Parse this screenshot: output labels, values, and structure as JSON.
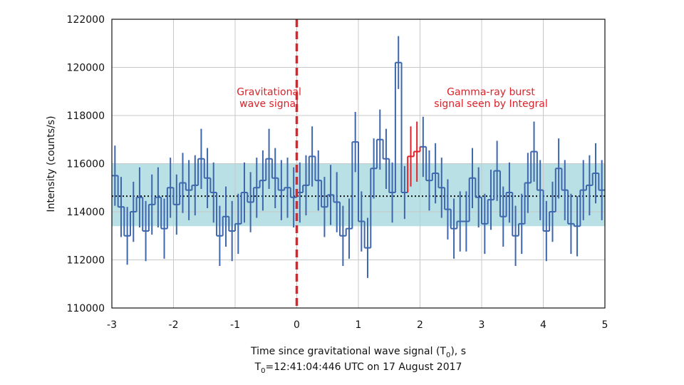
{
  "chart_data": {
    "type": "line",
    "title": "",
    "xlabel": "Time since gravitational wave signal (T",
    "xlabel_sub": "0",
    "xlabel_suffix": "), s",
    "xlabel_line2_prefix": "T",
    "xlabel_line2_sub": "0",
    "xlabel_line2_suffix": "=12:41:04:446 UTC on 17 August 2017",
    "ylabel": "Intensity (counts/s)",
    "xlim": [
      -3,
      5
    ],
    "ylim": [
      110000,
      122000
    ],
    "xticks": [
      -3,
      -2,
      -1,
      0,
      1,
      2,
      3,
      4,
      5
    ],
    "xtick_labels": [
      "-3",
      "-2",
      "-1",
      "0",
      "1",
      "2",
      "3",
      "4",
      "5"
    ],
    "yticks": [
      110000,
      112000,
      114000,
      116000,
      118000,
      120000,
      122000
    ],
    "ytick_labels": [
      "110000",
      "112000",
      "114000",
      "116000",
      "118000",
      "120000",
      "122000"
    ],
    "grid": true,
    "bin_width": 0.1,
    "series": [
      {
        "x_start": [
          -3.0,
          -2.9,
          -2.8,
          -2.7,
          -2.6,
          -2.5,
          -2.4,
          -2.3,
          -2.2,
          -2.1,
          -2.0,
          -1.9,
          -1.8,
          -1.7,
          -1.6,
          -1.5,
          -1.4,
          -1.3,
          -1.2,
          -1.1,
          -1.0,
          -0.9,
          -0.8,
          -0.7,
          -0.6,
          -0.5,
          -0.4,
          -0.3,
          -0.2,
          -0.1,
          0.0,
          0.1,
          0.2,
          0.3,
          0.4,
          0.5,
          0.6,
          0.7,
          0.8,
          0.9,
          1.0,
          1.1,
          1.2,
          1.3,
          1.4,
          1.5,
          1.6,
          1.7,
          1.8,
          1.9,
          2.0,
          2.1,
          2.2,
          2.3,
          2.4,
          2.5,
          2.6,
          2.7,
          2.8,
          2.9,
          3.0,
          3.1,
          3.2,
          3.3,
          3.4,
          3.5,
          3.6,
          3.7,
          3.8,
          3.9,
          4.0,
          4.1,
          4.2,
          4.3,
          4.4,
          4.5,
          4.6,
          4.7,
          4.8,
          4.9
        ],
        "values": [
          115500,
          114200,
          113000,
          114000,
          114600,
          113200,
          114300,
          114600,
          113300,
          115000,
          114300,
          115200,
          114900,
          115100,
          116200,
          115400,
          114800,
          113000,
          113800,
          113200,
          113500,
          114800,
          114400,
          115000,
          115300,
          116200,
          115400,
          114900,
          115000,
          114600,
          114800,
          115100,
          116300,
          115300,
          114200,
          114700,
          114400,
          113000,
          113300,
          116900,
          113600,
          112500,
          115800,
          117000,
          116200,
          114800,
          120200,
          114800,
          116300,
          116500,
          116700,
          115300,
          115600,
          115000,
          114100,
          113300,
          113600,
          113600,
          115400,
          114600,
          113500,
          114500,
          115700,
          113800,
          114800,
          113000,
          113500,
          115200,
          116500,
          114900,
          113200,
          114000,
          115800,
          114900,
          113500,
          113400,
          114900,
          115100,
          115600,
          114900
        ],
        "error": [
          1250,
          1250,
          1200,
          1250,
          1250,
          1250,
          1250,
          1250,
          1250,
          1250,
          1250,
          1250,
          1250,
          1250,
          1250,
          1250,
          1250,
          1250,
          1250,
          1250,
          1250,
          1250,
          1250,
          1250,
          1250,
          1250,
          1250,
          1250,
          1250,
          1250,
          1250,
          1250,
          1250,
          1250,
          1250,
          1250,
          1250,
          1250,
          1250,
          1250,
          1250,
          1250,
          1250,
          1250,
          1250,
          1250,
          1100,
          1100,
          1250,
          1250,
          1250,
          1250,
          1250,
          1250,
          1250,
          1250,
          1250,
          1250,
          1250,
          1250,
          1250,
          1250,
          1250,
          1250,
          1250,
          1250,
          1250,
          1250,
          1250,
          1250,
          1250,
          1250,
          1250,
          1250,
          1250,
          1250,
          1250,
          1250,
          1250,
          1250
        ],
        "highlight_range": [
          1.8,
          2.0
        ]
      }
    ],
    "band": [
      113400,
      116000
    ],
    "mean": 114650,
    "event_x": 0,
    "annotations": [
      {
        "line1": "Gravitational",
        "line2": "wave signal",
        "x": -0.45
      },
      {
        "line1": "Gamma-ray burst",
        "line2": "signal seen by Integral",
        "x": 3.15
      }
    ],
    "colors": {
      "series": "#3d66ad",
      "highlight": "#e0232a",
      "band": "#b9e1e5",
      "grid": "#c8c8c8",
      "mean": "#111111",
      "event": "#e0232a"
    }
  }
}
